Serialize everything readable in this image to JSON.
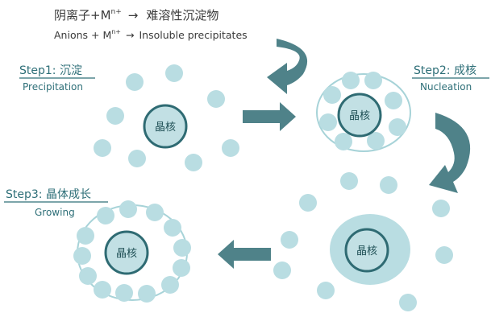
{
  "equation": {
    "cn": {
      "lhs": "阴离子+M",
      "sup": "n+",
      "arrow": "→",
      "rhs": "难溶性沉淀物"
    },
    "en": {
      "lhs": "Anions + M",
      "sup": "n+",
      "arrow": "→",
      "rhs": "Insoluble precipitates"
    }
  },
  "steps": [
    {
      "title": "Step1: 沉淀",
      "subtitle": "Precipitation"
    },
    {
      "title": "Step2: 成核",
      "subtitle": "Nucleation"
    },
    {
      "title": "Step3: 晶体成长",
      "subtitle": "Growing"
    }
  ],
  "nucleus_label": "晶核",
  "colors": {
    "ion": "#b9dde2",
    "core_fill": "#c2e0e4",
    "core_stroke": "#2f6b73",
    "arrow": "#4f8289",
    "text": "#2e6f78"
  }
}
